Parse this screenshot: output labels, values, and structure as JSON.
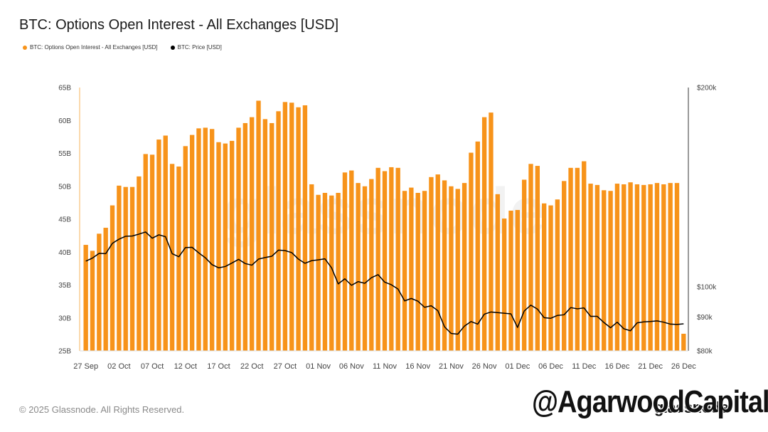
{
  "title": "BTC: Options Open Interest - All Exchanges [USD]",
  "legend": [
    {
      "label": "BTC: Options Open Interest - All Exchanges [USD]",
      "color": "#f7931a"
    },
    {
      "label": "BTC: Price [USD]",
      "color": "#000000"
    }
  ],
  "footer": {
    "copyright": "© 2025 Glassnode. All Rights Reserved.",
    "brand": "glassnode",
    "watermark": "glassnode",
    "overlay_handle": "@AgarwoodCapital"
  },
  "chart_data": {
    "type": "bar",
    "x": [
      "27 Sep",
      "28 Sep",
      "29 Sep",
      "30 Sep",
      "01 Oct",
      "02 Oct",
      "03 Oct",
      "04 Oct",
      "05 Oct",
      "06 Oct",
      "07 Oct",
      "08 Oct",
      "09 Oct",
      "10 Oct",
      "11 Oct",
      "12 Oct",
      "13 Oct",
      "14 Oct",
      "15 Oct",
      "16 Oct",
      "17 Oct",
      "18 Oct",
      "19 Oct",
      "20 Oct",
      "21 Oct",
      "22 Oct",
      "23 Oct",
      "24 Oct",
      "25 Oct",
      "26 Oct",
      "27 Oct",
      "28 Oct",
      "29 Oct",
      "30 Oct",
      "31 Oct",
      "01 Nov",
      "02 Nov",
      "03 Nov",
      "04 Nov",
      "05 Nov",
      "06 Nov",
      "07 Nov",
      "08 Nov",
      "09 Nov",
      "10 Nov",
      "11 Nov",
      "12 Nov",
      "13 Nov",
      "14 Nov",
      "15 Nov",
      "16 Nov",
      "17 Nov",
      "18 Nov",
      "19 Nov",
      "20 Nov",
      "21 Nov",
      "22 Nov",
      "23 Nov",
      "24 Nov",
      "25 Nov",
      "26 Nov",
      "27 Nov",
      "28 Nov",
      "29 Nov",
      "30 Nov",
      "01 Dec",
      "02 Dec",
      "03 Dec",
      "04 Dec",
      "05 Dec",
      "06 Dec",
      "07 Dec",
      "08 Dec",
      "09 Dec",
      "10 Dec",
      "11 Dec",
      "12 Dec",
      "13 Dec",
      "14 Dec",
      "15 Dec",
      "16 Dec",
      "17 Dec",
      "18 Dec",
      "19 Dec",
      "20 Dec",
      "21 Dec",
      "22 Dec",
      "23 Dec",
      "24 Dec",
      "25 Dec",
      "26 Dec"
    ],
    "xticks": [
      "27 Sep",
      "02 Oct",
      "07 Oct",
      "12 Oct",
      "17 Oct",
      "22 Oct",
      "27 Oct",
      "01 Nov",
      "06 Nov",
      "11 Nov",
      "16 Nov",
      "21 Nov",
      "26 Nov",
      "01 Dec",
      "06 Dec",
      "11 Dec",
      "16 Dec",
      "21 Dec",
      "26 Dec"
    ],
    "series": [
      {
        "name": "BTC: Options Open Interest - All Exchanges [USD]",
        "type": "bar",
        "axis": "left",
        "color": "#f7931a",
        "values": [
          41.1,
          40.2,
          42.8,
          43.7,
          47.1,
          50.1,
          49.9,
          49.9,
          51.5,
          54.9,
          54.8,
          57.1,
          57.7,
          53.4,
          53.0,
          56.1,
          57.8,
          58.8,
          58.9,
          58.7,
          56.7,
          56.5,
          56.9,
          58.9,
          59.6,
          60.5,
          63.0,
          60.2,
          59.6,
          61.4,
          62.8,
          62.7,
          62.0,
          62.3,
          50.3,
          48.7,
          49.0,
          48.6,
          49.0,
          52.1,
          52.4,
          50.5,
          50.0,
          51.1,
          52.8,
          52.3,
          52.9,
          52.8,
          49.3,
          49.8,
          49.0,
          49.3,
          51.4,
          51.8,
          50.9,
          50.0,
          49.6,
          50.5,
          55.1,
          56.8,
          60.5,
          61.2,
          48.8,
          45.1,
          46.3,
          46.4,
          51.0,
          53.4,
          53.1,
          47.4,
          47.1,
          48.0,
          50.8,
          52.8,
          52.8,
          53.8,
          50.4,
          50.2,
          49.4,
          49.3,
          50.4,
          50.3,
          50.6,
          50.3,
          50.2,
          50.3,
          50.5,
          50.3,
          50.5,
          50.5,
          27.6
        ]
      },
      {
        "name": "BTC: Price [USD]",
        "type": "line",
        "axis": "right",
        "color": "#000000",
        "values": [
          109300,
          110500,
          112300,
          112200,
          116300,
          118000,
          119200,
          119300,
          120100,
          121000,
          118400,
          119800,
          119000,
          112200,
          111000,
          114600,
          114700,
          112500,
          110600,
          108000,
          106800,
          107300,
          108600,
          110000,
          108400,
          107800,
          110100,
          110700,
          111200,
          113600,
          113400,
          112600,
          110100,
          108500,
          109500,
          109800,
          110200,
          106800,
          101000,
          102800,
          100500,
          101800,
          101200,
          103200,
          104300,
          101600,
          100700,
          99200,
          95200,
          96000,
          95100,
          93100,
          93600,
          92000,
          87000,
          85000,
          84800,
          87200,
          88600,
          87800,
          90900,
          91600,
          91400,
          91200,
          91000,
          86800,
          91900,
          93800,
          92500,
          89800,
          89600,
          90500,
          90700,
          93000,
          92600,
          92900,
          90200,
          90200,
          88300,
          86700,
          88400,
          86400,
          85800,
          88200,
          88500,
          88600,
          88800,
          88400,
          87800,
          87700,
          87900
        ]
      }
    ],
    "y_left": {
      "ticks": [
        "25B",
        "30B",
        "35B",
        "40B",
        "45B",
        "50B",
        "55B",
        "60B",
        "65B"
      ],
      "range": [
        25,
        65
      ]
    },
    "y_right": {
      "ticks": [
        "$80k",
        "$90k",
        "$100k",
        "$200k"
      ],
      "scale": "log",
      "range": [
        80000,
        200000
      ]
    },
    "grid": false,
    "legend_position": "top-left"
  }
}
